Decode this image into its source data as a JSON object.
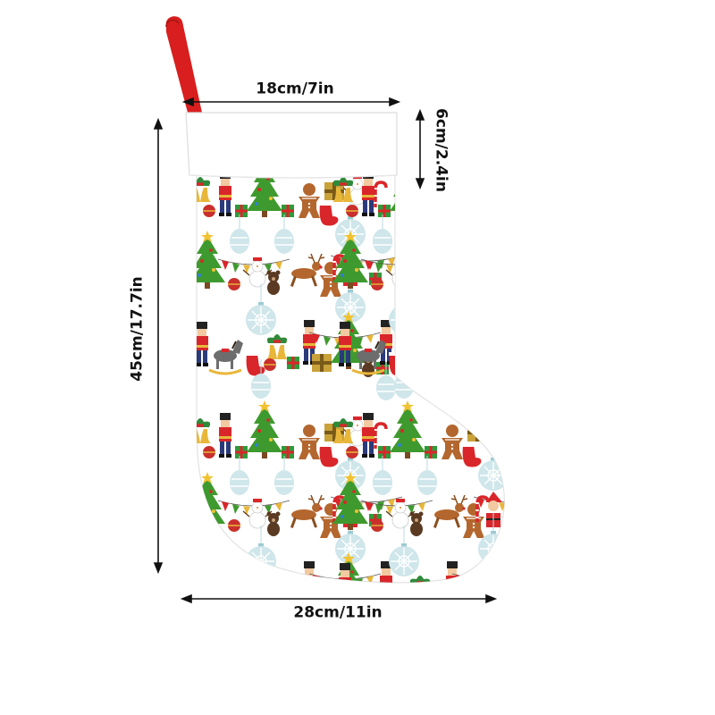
{
  "product": {
    "stocking_body_color": "#ffffff",
    "cuff_color": "#ffffff",
    "hanger_loop_color": "#d81e1e",
    "outline_color": "#e2e2e2"
  },
  "dimensions": {
    "cuff_width": "18cm/7in",
    "cuff_height": "6cm/2.4in",
    "total_height": "45cm/17.7in",
    "foot_width": "28cm/11in"
  },
  "pattern": {
    "motifs": [
      "christmas-tree-icon",
      "nutcracker-icon",
      "gingerbread-man-icon",
      "gift-box-icon",
      "snowman-icon",
      "reindeer-icon",
      "santa-icon",
      "ornament-bauble-icon",
      "bunting-flags-icon",
      "rocking-horse-icon",
      "teddy-bear-icon",
      "holly-bell-icon",
      "candy-cane-icon",
      "mitten-icon"
    ],
    "colors": {
      "tree": "#3e9a2e",
      "red": "#d9262a",
      "bauble": "#b9dbe0",
      "gold": "#e8b73a",
      "brown": "#9a5b2a"
    }
  }
}
